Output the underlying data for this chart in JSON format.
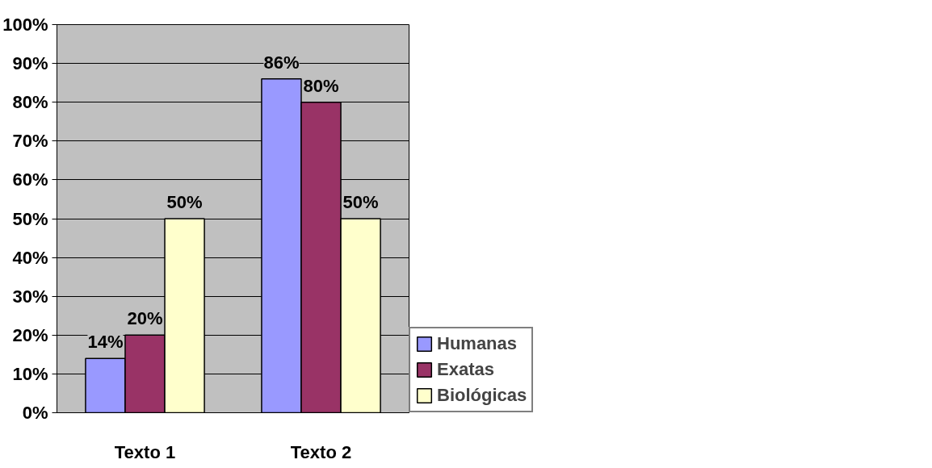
{
  "chart_data": {
    "type": "bar",
    "categories": [
      "Texto 1",
      "Texto 2"
    ],
    "series": [
      {
        "name": "Humanas",
        "color": "#9999ff",
        "values": [
          14,
          86
        ],
        "value_labels": [
          "14%",
          "86%"
        ]
      },
      {
        "name": "Exatas",
        "color": "#993366",
        "values": [
          20,
          80
        ],
        "value_labels": [
          "20%",
          "80%"
        ]
      },
      {
        "name": "Biológicas",
        "color": "#ffffcc",
        "values": [
          50,
          50
        ],
        "value_labels": [
          "50%",
          "50%"
        ]
      }
    ],
    "ylim": [
      0,
      100
    ],
    "yticks": [
      {
        "value": 0,
        "label": "0%"
      },
      {
        "value": 10,
        "label": "10%"
      },
      {
        "value": 20,
        "label": "20%"
      },
      {
        "value": 30,
        "label": "30%"
      },
      {
        "value": 40,
        "label": "40%"
      },
      {
        "value": 50,
        "label": "50%"
      },
      {
        "value": 60,
        "label": "60%"
      },
      {
        "value": 70,
        "label": "70%"
      },
      {
        "value": 80,
        "label": "80%"
      },
      {
        "value": 90,
        "label": "90%"
      },
      {
        "value": 100,
        "label": "100%"
      }
    ],
    "grid": "y",
    "legend": "right"
  }
}
